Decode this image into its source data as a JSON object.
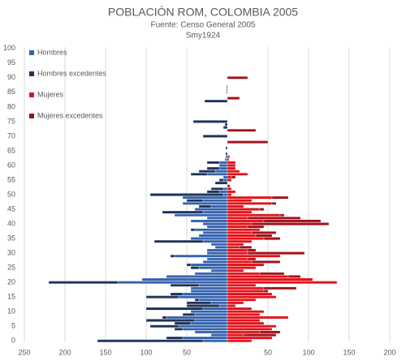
{
  "chart_data": {
    "type": "pyramid",
    "title": "POBLACIÓN ROM, COLOMBIA 2005",
    "subtitle": "Fuente: Censo General 2005",
    "author": "Smy1924",
    "categories": [
      0,
      null,
      null,
      null,
      null,
      5,
      null,
      null,
      null,
      null,
      10,
      null,
      null,
      null,
      null,
      15,
      null,
      null,
      null,
      null,
      20,
      null,
      null,
      null,
      null,
      25,
      null,
      null,
      null,
      null,
      30,
      null,
      null,
      null,
      null,
      35,
      null,
      null,
      null,
      null,
      40,
      null,
      null,
      null,
      null,
      45,
      null,
      null,
      null,
      null,
      50,
      null,
      null,
      null,
      null,
      55,
      null,
      null,
      null,
      null,
      60,
      null,
      null,
      null,
      null,
      65,
      null,
      null,
      null,
      null,
      70,
      null,
      null,
      null,
      null,
      75,
      null,
      null,
      null,
      null,
      80,
      null,
      null,
      null,
      null,
      85,
      null,
      null,
      null,
      null,
      90,
      null,
      null,
      null,
      null,
      95,
      null,
      null,
      null,
      null,
      100
    ],
    "series": [
      {
        "name": "Hombres",
        "color": "#3563ad",
        "values": [
          -30,
          -55,
          -20,
          -40,
          -55,
          -60,
          -45,
          -40,
          -75,
          -40,
          -45,
          -30,
          -10,
          -20,
          -35,
          -60,
          -55,
          -45,
          -45,
          -35,
          -135,
          -105,
          -75,
          -40,
          -20,
          -35,
          -45,
          -30,
          -25,
          -65,
          -25,
          -25,
          -15,
          -20,
          -30,
          -45,
          -35,
          -30,
          -40,
          -25,
          -30,
          -45,
          -25,
          -65,
          -30,
          -40,
          -20,
          -55,
          -30,
          -55,
          -5,
          -10,
          -5,
          0,
          0,
          -5,
          -5,
          -25,
          -15,
          -10,
          -10,
          -10,
          -2,
          -2,
          0,
          0,
          0,
          0,
          0,
          0,
          0,
          0,
          0,
          0,
          0,
          0,
          0,
          0,
          0,
          0,
          0,
          0,
          0,
          0,
          0,
          0,
          0,
          0,
          0,
          0,
          0,
          0,
          0,
          0,
          0,
          0,
          0,
          0,
          0,
          0,
          0
        ]
      },
      {
        "name": "Hombres excedentes",
        "color": "#1f3459",
        "values": [
          -130,
          -20,
          0,
          0,
          -10,
          -35,
          -20,
          -60,
          -5,
          -15,
          0,
          -70,
          -40,
          -30,
          -5,
          -40,
          -15,
          0,
          0,
          -35,
          -85,
          0,
          0,
          0,
          0,
          -10,
          -5,
          0,
          0,
          -5,
          0,
          0,
          0,
          0,
          -60,
          0,
          0,
          0,
          -5,
          0,
          0,
          0,
          0,
          0,
          -50,
          0,
          -15,
          0,
          -20,
          0,
          -90,
          -15,
          -15,
          0,
          -15,
          -5,
          0,
          -20,
          -20,
          -15,
          0,
          -15,
          -1,
          0,
          -2,
          0,
          -2,
          0,
          0,
          0,
          -30,
          0,
          0,
          -5,
          -3,
          -42,
          0,
          0,
          0,
          0,
          0,
          0,
          -28,
          0,
          0,
          -1,
          -1,
          -1,
          0,
          0,
          0,
          0,
          0,
          0,
          0,
          0,
          0,
          0,
          0,
          0,
          0
        ]
      },
      {
        "name": "Mujeres",
        "color": "#e3121a",
        "values": [
          30,
          55,
          20,
          40,
          55,
          60,
          45,
          40,
          75,
          40,
          45,
          30,
          10,
          20,
          35,
          60,
          55,
          45,
          45,
          35,
          135,
          105,
          75,
          40,
          20,
          35,
          45,
          30,
          25,
          65,
          25,
          25,
          15,
          20,
          30,
          45,
          35,
          30,
          40,
          25,
          30,
          45,
          25,
          65,
          30,
          40,
          20,
          55,
          30,
          55,
          5,
          10,
          5,
          0,
          0,
          5,
          5,
          25,
          15,
          10,
          10,
          10,
          2,
          2,
          0,
          0,
          0,
          0,
          0,
          0,
          0,
          0,
          0,
          0,
          0,
          0,
          0,
          0,
          0,
          0,
          0,
          0,
          0,
          0,
          0,
          0,
          0,
          0,
          0,
          0,
          0,
          0,
          0,
          0,
          0,
          0,
          0,
          0,
          0,
          0,
          0
        ]
      },
      {
        "name": "Mujeres excedentes",
        "color": "#a3111a",
        "values": [
          0,
          0,
          40,
          25,
          0,
          0,
          0,
          0,
          0,
          0,
          0,
          0,
          0,
          0,
          0,
          0,
          0,
          5,
          40,
          0,
          0,
          0,
          15,
          30,
          0,
          0,
          0,
          35,
          10,
          0,
          70,
          10,
          15,
          0,
          0,
          20,
          20,
          30,
          0,
          20,
          95,
          70,
          65,
          5,
          0,
          5,
          0,
          5,
          0,
          20,
          0,
          0,
          0,
          3,
          0,
          0,
          5,
          0,
          0,
          0,
          0,
          0,
          0,
          1,
          0,
          0,
          0,
          0,
          50,
          0,
          0,
          0,
          35,
          0,
          0,
          0,
          0,
          0,
          0,
          0,
          0,
          0,
          0,
          15,
          0,
          0,
          0,
          0,
          0,
          0,
          25,
          0,
          0,
          0,
          0,
          0,
          0,
          0,
          0,
          0,
          0
        ]
      }
    ],
    "xlim": [
      -250,
      200
    ],
    "xticks": [
      {
        "value": -250,
        "label": "250"
      },
      {
        "value": -200,
        "label": "200"
      },
      {
        "value": -150,
        "label": "150"
      },
      {
        "value": -100,
        "label": "100"
      },
      {
        "value": -50,
        "label": "50"
      },
      50,
      100,
      150,
      200
    ],
    "grid": true,
    "legend": "top-left"
  }
}
